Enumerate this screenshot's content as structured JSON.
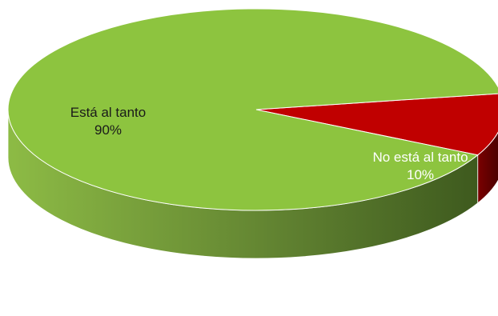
{
  "chart_data": {
    "type": "pie",
    "style": "3d",
    "slices": [
      {
        "label": "Está al tanto",
        "value": 90,
        "percent_label": "90%",
        "color": "#8dc43f",
        "side_color": "#4f6d22"
      },
      {
        "label": "No está al tanto",
        "value": 10,
        "percent_label": "10%",
        "color": "#c00000",
        "side_color": "#5a0000"
      }
    ]
  }
}
